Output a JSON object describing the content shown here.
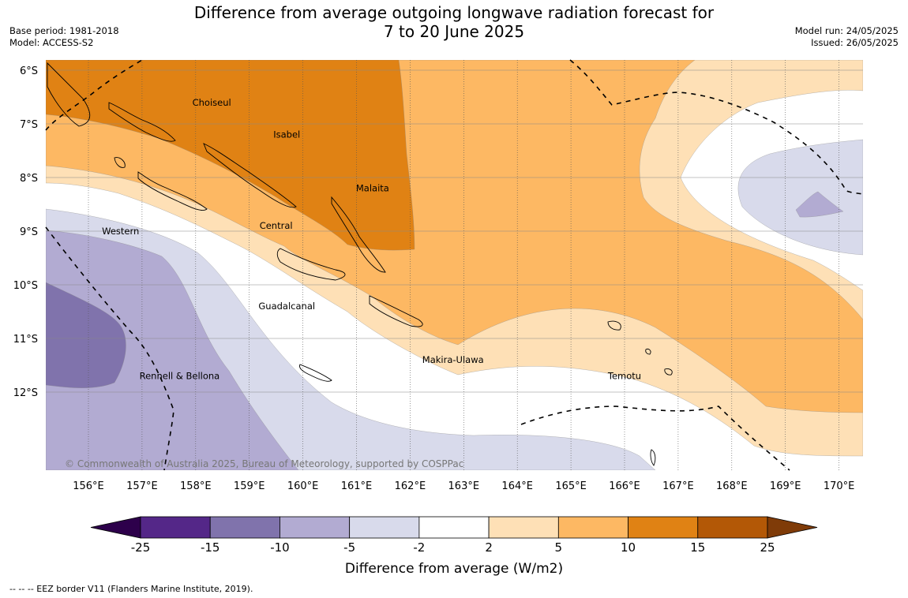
{
  "title_line1": "Difference from average outgoing longwave radiation forecast for",
  "title_line2": "7 to 20 June 2025",
  "base_period": "Base period: 1981-2018",
  "model": "Model: ACCESS-S2",
  "model_run": "Model run: 24/05/2025",
  "issued": "Issued: 26/05/2025",
  "copyright": "© Commonwealth of Australia 2025, Bureau of Meteorology, supported by COSPPac",
  "eez_note": "--  --  -- EEZ border V11 (Flanders Marine Institute, 2019).",
  "lat_labels": [
    "6°S",
    "7°S",
    "8°S",
    "9°S",
    "10°S",
    "11°S",
    "12°S"
  ],
  "lon_labels": [
    "156°E",
    "157°E",
    "158°E",
    "159°E",
    "160°E",
    "161°E",
    "162°E",
    "163°E",
    "164°E",
    "165°E",
    "166°E",
    "167°E",
    "168°E",
    "169°E",
    "170°E"
  ],
  "places": [
    {
      "name": "Choiseul",
      "lon": 158.3,
      "lat": -6.6
    },
    {
      "name": "Isabel",
      "lon": 159.7,
      "lat": -7.2
    },
    {
      "name": "Malaita",
      "lon": 161.3,
      "lat": -8.2
    },
    {
      "name": "Central",
      "lon": 159.5,
      "lat": -8.9
    },
    {
      "name": "Western",
      "lon": 156.6,
      "lat": -9.0
    },
    {
      "name": "Guadalcanal",
      "lon": 159.7,
      "lat": -10.4
    },
    {
      "name": "Makira-Ulawa",
      "lon": 162.8,
      "lat": -11.4
    },
    {
      "name": "Temotu",
      "lon": 166.0,
      "lat": -11.7
    },
    {
      "name": "Rennell & Bellona",
      "lon": 157.7,
      "lat": -11.7
    }
  ],
  "colorbar": {
    "title": "Difference from average (W/m2)",
    "ticks": [
      "-25",
      "-15",
      "-10",
      "-5",
      "-2",
      "2",
      "5",
      "10",
      "15",
      "25"
    ],
    "colors": {
      "below_min": "#2d004b",
      "m25_m15": "#542788",
      "m15_m10": "#8073ac",
      "m10_m5": "#b2abd2",
      "m5_m2": "#d8daeb",
      "m2_p2": "#ffffff",
      "p2_p5": "#fee0b6",
      "p5_p10": "#fdb863",
      "p10_p15": "#e08214",
      "p15_p25": "#b35806",
      "above_max": "#7f3b08"
    }
  }
}
